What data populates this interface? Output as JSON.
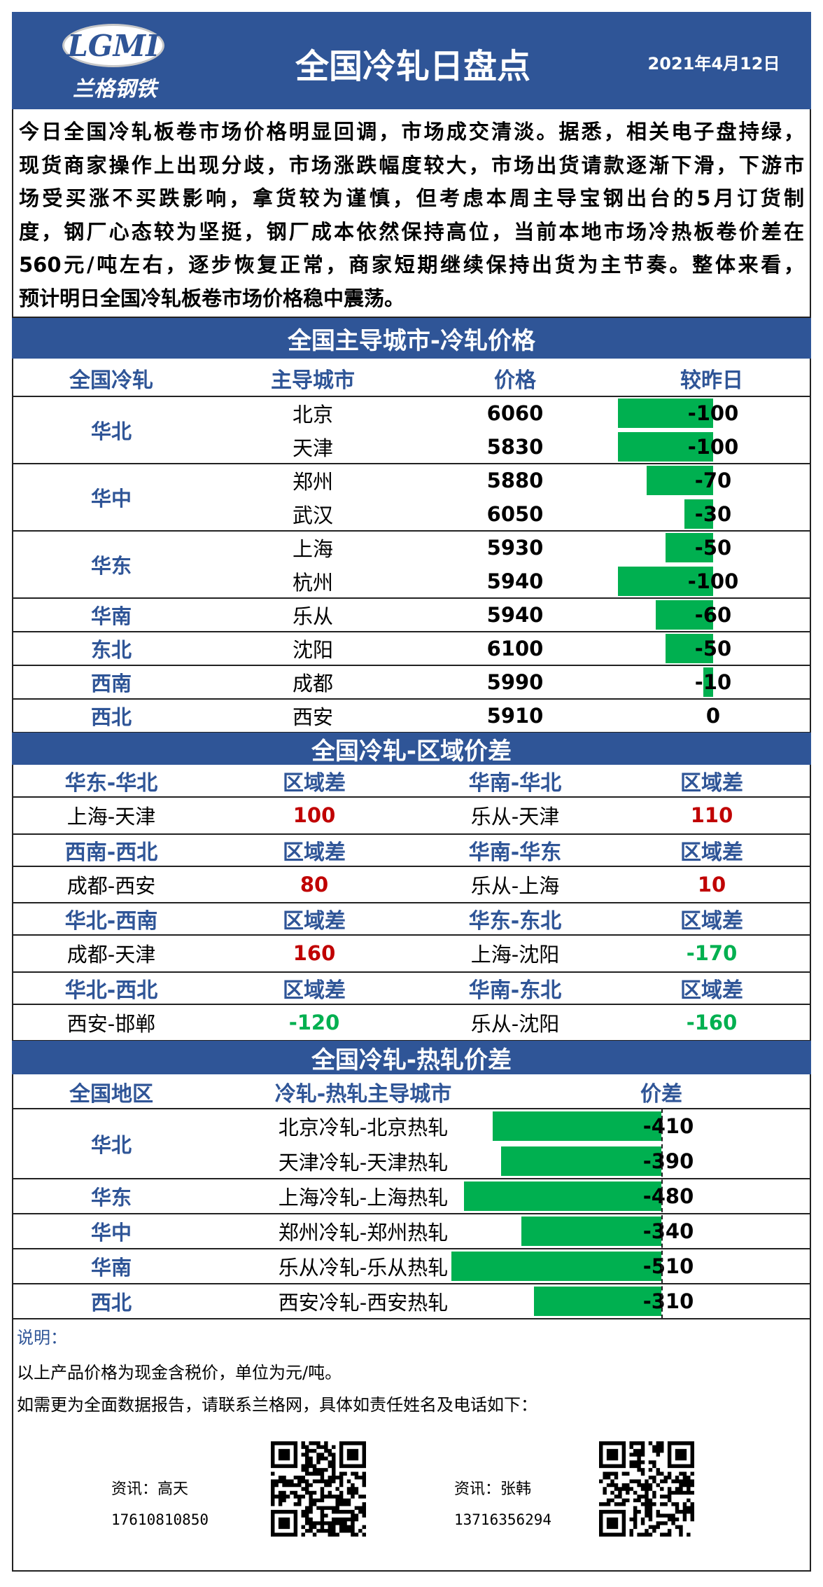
{
  "header": {
    "logo_text": "LGMI",
    "logo_sub": "兰格钢铁",
    "title": "全国冷轧日盘点",
    "date": "2021年4月12日"
  },
  "summary": [
    "今日全国冷轧板卷市场价格明显回调，市场成交清淡。据悉，相关电子盘持绿，",
    "现货商家操作上出现分歧，市场涨跌幅度较大，市场出货请款逐渐下滑，下游市",
    "场受买涨不买跌影响，拿货较为谨慎，但考虑本周主导宝钢出台的5月订货制",
    "度，钢厂心态较为坚挺，钢厂成本依然保持高位，当前本地市场冷热板卷价差在",
    "560元/吨左右，逐步恢复正常，商家短期继续保持出货为主节奏。整体来看，",
    "预计明日全国冷轧板卷市场价格稳中震荡。"
  ],
  "price_section": {
    "title": "全国主导城市-冷轧价格",
    "columns": [
      "全国冷轧",
      "主导城市",
      "价格",
      "较昨日"
    ],
    "bar_color": "#00b050",
    "groups": [
      {
        "region": "华北",
        "rows": [
          {
            "city": "北京",
            "price": 6060,
            "change": -100
          },
          {
            "city": "天津",
            "price": 5830,
            "change": -100
          }
        ]
      },
      {
        "region": "华中",
        "rows": [
          {
            "city": "郑州",
            "price": 5880,
            "change": -70
          },
          {
            "city": "武汉",
            "price": 6050,
            "change": -30
          }
        ]
      },
      {
        "region": "华东",
        "rows": [
          {
            "city": "上海",
            "price": 5930,
            "change": -50
          },
          {
            "city": "杭州",
            "price": 5940,
            "change": -100
          }
        ]
      },
      {
        "region": "华南",
        "rows": [
          {
            "city": "乐从",
            "price": 5940,
            "change": -60
          }
        ]
      },
      {
        "region": "东北",
        "rows": [
          {
            "city": "沈阳",
            "price": 6100,
            "change": -50
          }
        ]
      },
      {
        "region": "西南",
        "rows": [
          {
            "city": "成都",
            "price": 5990,
            "change": -10
          }
        ]
      },
      {
        "region": "西北",
        "rows": [
          {
            "city": "西安",
            "price": 5910,
            "change": 0
          }
        ]
      }
    ]
  },
  "region_section": {
    "title": "全国冷轧-区域价差",
    "positive_color": "#c00000",
    "negative_color": "#00b050",
    "blocks": [
      [
        {
          "pair": "华东-华北",
          "label": "区域差",
          "route": "上海-天津",
          "diff": 100
        },
        {
          "pair": "华南-华北",
          "label": "区域差",
          "route": "乐从-天津",
          "diff": 110
        }
      ],
      [
        {
          "pair": "西南-西北",
          "label": "区域差",
          "route": "成都-西安",
          "diff": 80
        },
        {
          "pair": "华南-华东",
          "label": "区域差",
          "route": "乐从-上海",
          "diff": 10
        }
      ],
      [
        {
          "pair": "华北-西南",
          "label": "区域差",
          "route": "成都-天津",
          "diff": 160
        },
        {
          "pair": "华东-东北",
          "label": "区域差",
          "route": "上海-沈阳",
          "diff": -170
        }
      ],
      [
        {
          "pair": "华北-西北",
          "label": "区域差",
          "route": "西安-邯郸",
          "diff": -120
        },
        {
          "pair": "华南-东北",
          "label": "区域差",
          "route": "乐从-沈阳",
          "diff": -160
        }
      ]
    ]
  },
  "hot_section": {
    "title": "全国冷轧-热轧价差",
    "columns": [
      "全国地区",
      "冷轧-热轧主导城市",
      "价差"
    ],
    "bar_color": "#00b050",
    "groups": [
      {
        "region": "华北",
        "rows": [
          {
            "route": "北京冷轧-北京热轧",
            "diff": -410
          },
          {
            "route": "天津冷轧-天津热轧",
            "diff": -390
          }
        ]
      },
      {
        "region": "华东",
        "rows": [
          {
            "route": "上海冷轧-上海热轧",
            "diff": -480
          }
        ]
      },
      {
        "region": "华中",
        "rows": [
          {
            "route": "郑州冷轧-郑州热轧",
            "diff": -340
          }
        ]
      },
      {
        "region": "华南",
        "rows": [
          {
            "route": "乐从冷轧-乐从热轧",
            "diff": -510
          }
        ]
      },
      {
        "region": "西北",
        "rows": [
          {
            "route": "西安冷轧-西安热轧",
            "diff": -310
          }
        ]
      }
    ]
  },
  "notes": {
    "title": "说明：",
    "lines": [
      "以上产品价格为现金含税价，单位为元/吨。",
      "如需更为全面数据报告，请联系兰格网，具体如责任姓名及电话如下："
    ]
  },
  "contacts": [
    {
      "label": "资讯：高天",
      "phone": "17610810850"
    },
    {
      "label": "资讯：张韩",
      "phone": "13716356294"
    }
  ]
}
